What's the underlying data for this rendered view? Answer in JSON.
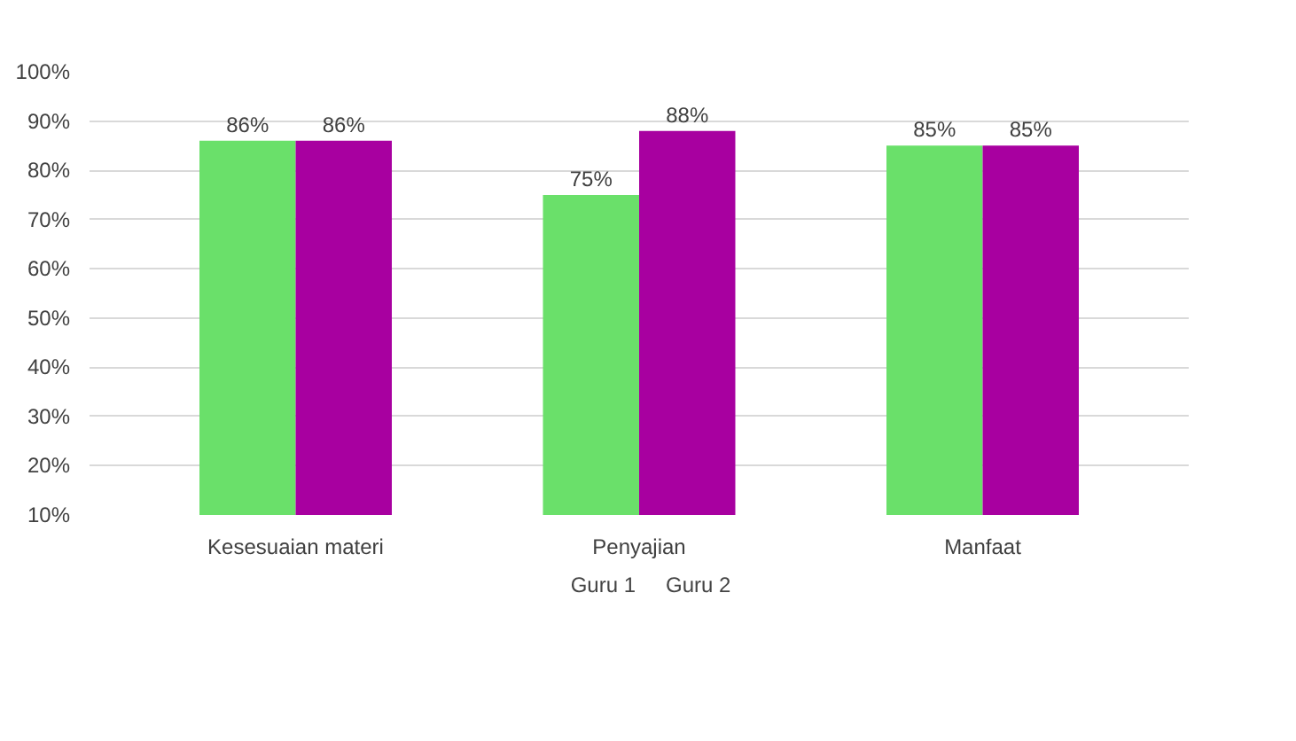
{
  "chart_data": {
    "type": "bar",
    "categories": [
      "Kesesuaian materi",
      "Penyajian",
      "Manfaat"
    ],
    "series": [
      {
        "name": "Guru 1",
        "color": "#6ae06a",
        "values": [
          86,
          75,
          85
        ],
        "value_labels": [
          "86%",
          "75%",
          "85%"
        ]
      },
      {
        "name": "Guru 2",
        "color": "#a800a0",
        "values": [
          86,
          88,
          85
        ],
        "value_labels": [
          "86%",
          "88%",
          "85%"
        ]
      }
    ],
    "ylim": [
      10,
      100
    ],
    "yticks": [
      {
        "value": 10,
        "label": "10%"
      },
      {
        "value": 20,
        "label": "20%"
      },
      {
        "value": 30,
        "label": "30%"
      },
      {
        "value": 40,
        "label": "40%"
      },
      {
        "value": 50,
        "label": "50%"
      },
      {
        "value": 60,
        "label": "60%"
      },
      {
        "value": 70,
        "label": "70%"
      },
      {
        "value": 80,
        "label": "80%"
      },
      {
        "value": 90,
        "label": "90%"
      },
      {
        "value": 100,
        "label": "100%"
      }
    ],
    "grid": "y",
    "legend": "bottom"
  }
}
